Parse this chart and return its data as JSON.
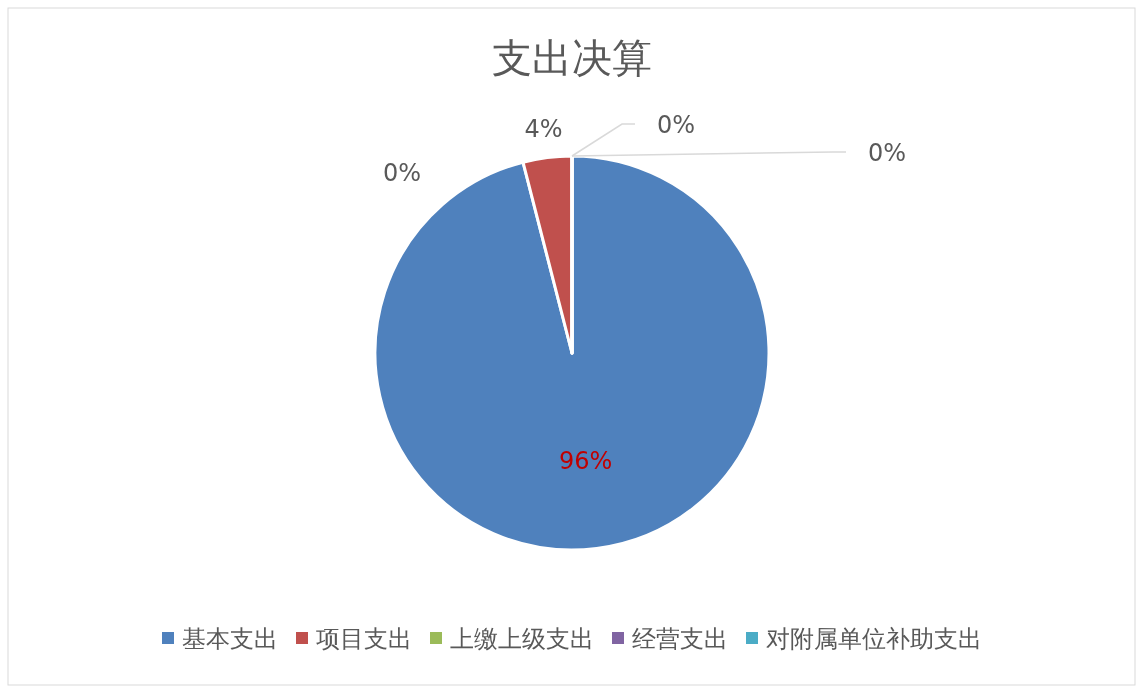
{
  "chart_data": {
    "type": "pie",
    "title": "支出决算",
    "categories": [
      "基本支出",
      "项目支出",
      "上缴上级支出",
      "经营支出",
      "对附属单位补助支出"
    ],
    "values": [
      96,
      4,
      0,
      0,
      0
    ],
    "colors": [
      "#4f81bd",
      "#c0504d",
      "#9bbb59",
      "#8064a2",
      "#4bacc6"
    ],
    "value_labels": [
      "96%",
      "4%",
      "0%",
      "0%",
      "0%"
    ],
    "legend": "bottom"
  }
}
